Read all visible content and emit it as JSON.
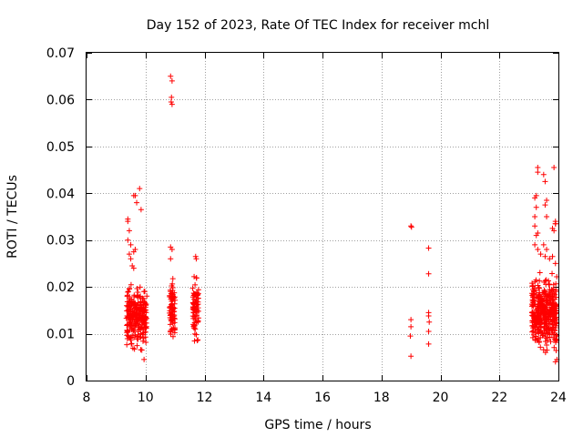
{
  "chart_data": {
    "type": "scatter",
    "title": "Day 152 of 2023, Rate Of TEC Index for receiver mchl",
    "xlabel": "GPS time / hours",
    "ylabel": "ROTI / TECUs",
    "xlim": [
      8,
      24
    ],
    "ylim": [
      0,
      0.07
    ],
    "xticks": [
      8,
      10,
      12,
      14,
      16,
      18,
      20,
      22,
      24
    ],
    "yticks": [
      0,
      0.01,
      0.02,
      0.03,
      0.04,
      0.05,
      0.06,
      0.07
    ],
    "ytick_labels": [
      "0",
      "0.01",
      "0.02",
      "0.03",
      "0.04",
      "0.05",
      "0.06",
      "0.07"
    ],
    "grid": true,
    "marker": "+",
    "color": "#ff0000",
    "clusters": [
      {
        "x_range": [
          9.35,
          10.05
        ],
        "y_range": [
          0.005,
          0.022
        ],
        "count": 260
      },
      {
        "x_range": [
          10.8,
          11.0
        ],
        "y_range": [
          0.007,
          0.024
        ],
        "count": 80
      },
      {
        "x_range": [
          11.6,
          11.8
        ],
        "y_range": [
          0.006,
          0.025
        ],
        "count": 80
      },
      {
        "x_range": [
          23.1,
          23.95
        ],
        "y_range": [
          0.005,
          0.024
        ],
        "count": 420
      }
    ],
    "points": [
      {
        "x": 9.4,
        "y": 0.0345
      },
      {
        "x": 9.4,
        "y": 0.034
      },
      {
        "x": 9.45,
        "y": 0.032
      },
      {
        "x": 9.4,
        "y": 0.03
      },
      {
        "x": 9.5,
        "y": 0.029
      },
      {
        "x": 9.45,
        "y": 0.027
      },
      {
        "x": 9.5,
        "y": 0.026
      },
      {
        "x": 9.6,
        "y": 0.0275
      },
      {
        "x": 9.65,
        "y": 0.028
      },
      {
        "x": 9.55,
        "y": 0.0245
      },
      {
        "x": 9.6,
        "y": 0.024
      },
      {
        "x": 9.6,
        "y": 0.0395
      },
      {
        "x": 9.65,
        "y": 0.0395
      },
      {
        "x": 9.7,
        "y": 0.038
      },
      {
        "x": 9.8,
        "y": 0.041
      },
      {
        "x": 9.85,
        "y": 0.0365
      },
      {
        "x": 9.95,
        "y": 0.019
      },
      {
        "x": 9.95,
        "y": 0.0045
      },
      {
        "x": 10.85,
        "y": 0.065
      },
      {
        "x": 10.9,
        "y": 0.064
      },
      {
        "x": 10.88,
        "y": 0.0605
      },
      {
        "x": 10.87,
        "y": 0.0595
      },
      {
        "x": 10.9,
        "y": 0.059
      },
      {
        "x": 10.85,
        "y": 0.0285
      },
      {
        "x": 10.9,
        "y": 0.028
      },
      {
        "x": 10.85,
        "y": 0.026
      },
      {
        "x": 11.7,
        "y": 0.0265
      },
      {
        "x": 11.72,
        "y": 0.026
      },
      {
        "x": 19.0,
        "y": 0.033
      },
      {
        "x": 19.02,
        "y": 0.0328
      },
      {
        "x": 19.0,
        "y": 0.013
      },
      {
        "x": 19.0,
        "y": 0.0115
      },
      {
        "x": 18.98,
        "y": 0.0095
      },
      {
        "x": 19.0,
        "y": 0.0052
      },
      {
        "x": 19.6,
        "y": 0.0283
      },
      {
        "x": 19.6,
        "y": 0.0228
      },
      {
        "x": 19.6,
        "y": 0.0145
      },
      {
        "x": 19.6,
        "y": 0.0138
      },
      {
        "x": 19.62,
        "y": 0.0125
      },
      {
        "x": 19.6,
        "y": 0.0105
      },
      {
        "x": 19.6,
        "y": 0.0078
      },
      {
        "x": 23.3,
        "y": 0.0455
      },
      {
        "x": 23.3,
        "y": 0.0445
      },
      {
        "x": 23.25,
        "y": 0.0395
      },
      {
        "x": 23.2,
        "y": 0.039
      },
      {
        "x": 23.25,
        "y": 0.037
      },
      {
        "x": 23.2,
        "y": 0.035
      },
      {
        "x": 23.5,
        "y": 0.044
      },
      {
        "x": 23.55,
        "y": 0.0425
      },
      {
        "x": 23.6,
        "y": 0.0385
      },
      {
        "x": 23.55,
        "y": 0.0375
      },
      {
        "x": 23.6,
        "y": 0.035
      },
      {
        "x": 23.85,
        "y": 0.0455
      },
      {
        "x": 23.9,
        "y": 0.034
      },
      {
        "x": 23.9,
        "y": 0.0335
      },
      {
        "x": 23.8,
        "y": 0.0325
      },
      {
        "x": 23.85,
        "y": 0.032
      },
      {
        "x": 23.9,
        "y": 0.0335
      },
      {
        "x": 23.2,
        "y": 0.033
      },
      {
        "x": 23.25,
        "y": 0.031
      },
      {
        "x": 23.3,
        "y": 0.0315
      },
      {
        "x": 23.2,
        "y": 0.029
      },
      {
        "x": 23.3,
        "y": 0.028
      },
      {
        "x": 23.4,
        "y": 0.027
      },
      {
        "x": 23.5,
        "y": 0.029
      },
      {
        "x": 23.6,
        "y": 0.028
      },
      {
        "x": 23.55,
        "y": 0.0265
      },
      {
        "x": 23.7,
        "y": 0.026
      },
      {
        "x": 23.8,
        "y": 0.0265
      },
      {
        "x": 23.9,
        "y": 0.025
      },
      {
        "x": 23.95,
        "y": 0.0045
      },
      {
        "x": 23.9,
        "y": 0.004
      }
    ]
  }
}
